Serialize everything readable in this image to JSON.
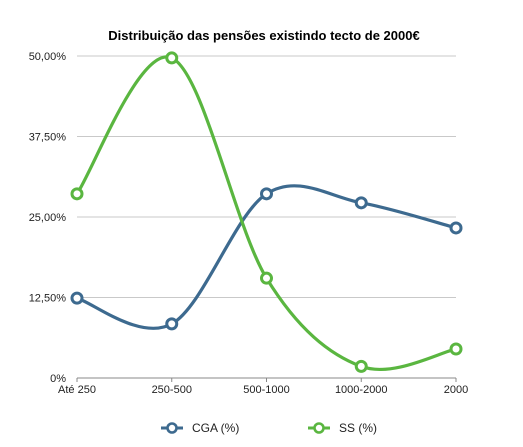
{
  "chart_data": {
    "type": "line",
    "title": "Distribuição das pensões existindo tecto de 2000€",
    "categories": [
      "Até 250",
      "250-500",
      "500-1000",
      "1000-2000",
      "2000"
    ],
    "y_ticks": [
      "0%",
      "12,50%",
      "25,00%",
      "37,50%",
      "50,00%"
    ],
    "ylim": [
      0,
      50
    ],
    "grid": true,
    "legend_position": "bottom",
    "series": [
      {
        "name": "CGA (%)",
        "color": "#3d6a8f",
        "values": [
          12.4,
          8.4,
          28.6,
          27.2,
          23.3
        ]
      },
      {
        "name": "SS (%)",
        "color": "#5ab640",
        "values": [
          28.6,
          49.7,
          15.5,
          1.8,
          4.5
        ]
      }
    ]
  }
}
